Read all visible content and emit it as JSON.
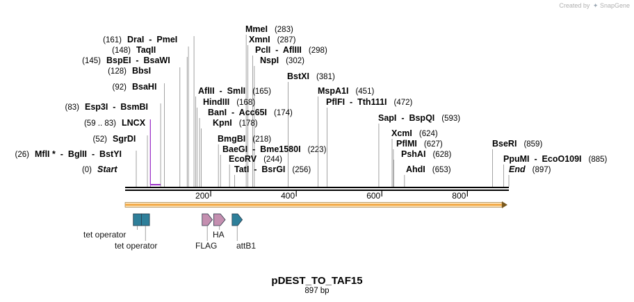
{
  "credit": {
    "text": "Created by",
    "brand": "SnapGene",
    "brand_icon": "snapgene-logo-icon"
  },
  "map": {
    "plasmid_name": "pDEST_TO_TAF15",
    "length_text": "897 bp",
    "length_bp": 897
  },
  "axis_ticks": [
    {
      "bp": 200,
      "label": "200"
    },
    {
      "bp": 400,
      "label": "400"
    },
    {
      "bp": 600,
      "label": "600"
    },
    {
      "bp": 800,
      "label": "800"
    }
  ],
  "sites": [
    {
      "text": "MmeI",
      "pos_text": "(283)",
      "bp": 283
    },
    {
      "text": "XmnI",
      "pos_text": "(287)",
      "bp": 287
    },
    {
      "text": "PclI  -  AflIII",
      "pos_text": "(298)",
      "bp": 298
    },
    {
      "text": "NspI",
      "pos_text": "(302)",
      "bp": 302
    },
    {
      "text": "BstXI",
      "pos_text": "(381)",
      "bp": 381
    },
    {
      "text": "DraI  -  PmeI",
      "pos_text": "(161)",
      "bp": 161
    },
    {
      "text": "TaqII",
      "pos_text": "(148)",
      "bp": 148
    },
    {
      "text": "BspEI  -  BsaWI",
      "pos_text": "(145)",
      "bp": 145
    },
    {
      "text": "BbsI",
      "pos_text": "(128)",
      "bp": 128
    },
    {
      "text": "BsaHI",
      "pos_text": "(92)",
      "bp": 92
    },
    {
      "text": "Esp3I  -  BsmBI",
      "pos_text": "(83)",
      "bp": 83
    },
    {
      "text": "LNCX",
      "pos_text": "(59 .. 83)",
      "bp": 59,
      "bp_end": 83,
      "kind": "primer"
    },
    {
      "text": "SgrDI",
      "pos_text": "(52)",
      "bp": 52
    },
    {
      "text": "MflI *  -  BglII  -  BstYI",
      "pos_text": "(26)",
      "bp": 26
    },
    {
      "text": "Start",
      "pos_text": "(0)",
      "bp": 0,
      "kind": "start"
    },
    {
      "text": "AflII  -  SmlI",
      "pos_text": "(165)",
      "bp": 165
    },
    {
      "text": "HindIII",
      "pos_text": "(168)",
      "bp": 168
    },
    {
      "text": "BanI  -  Acc65I",
      "pos_text": "(174)",
      "bp": 174
    },
    {
      "text": "KpnI",
      "pos_text": "(178)",
      "bp": 178
    },
    {
      "text": "BmgBI",
      "pos_text": "(218)",
      "bp": 218
    },
    {
      "text": "BaeGI  -  Bme1580I",
      "pos_text": "(223)",
      "bp": 223
    },
    {
      "text": "EcoRV",
      "pos_text": "(244)",
      "bp": 244
    },
    {
      "text": "TatI  -  BsrGI",
      "pos_text": "(256)",
      "bp": 256
    },
    {
      "text": "MspA1I",
      "pos_text": "(451)",
      "bp": 451
    },
    {
      "text": "PflFI  -  Tth111I",
      "pos_text": "(472)",
      "bp": 472
    },
    {
      "text": "SapI  -  BspQI",
      "pos_text": "(593)",
      "bp": 593
    },
    {
      "text": "XcmI",
      "pos_text": "(624)",
      "bp": 624
    },
    {
      "text": "PflMI",
      "pos_text": "(627)",
      "bp": 627
    },
    {
      "text": "PshAI",
      "pos_text": "(628)",
      "bp": 628
    },
    {
      "text": "AhdI",
      "pos_text": "(653)",
      "bp": 653
    },
    {
      "text": "BseRI",
      "pos_text": "(859)",
      "bp": 859
    },
    {
      "text": "PpuMI  -  EcoO109I",
      "pos_text": "(885)",
      "bp": 885
    },
    {
      "text": "End",
      "pos_text": "(897)",
      "bp": 897,
      "kind": "end"
    }
  ],
  "features": [
    {
      "name": "tet operator",
      "bp": 19,
      "bp_end": 38,
      "color": "#2e7f9a",
      "shape": "box"
    },
    {
      "name": "tet operator",
      "bp": 38,
      "bp_end": 57,
      "color": "#2e7f9a",
      "shape": "box"
    },
    {
      "name": "FLAG",
      "bp": 180,
      "bp_end": 204,
      "color": "#c48fb0",
      "shape": "arrow"
    },
    {
      "name": "HA",
      "bp": 207,
      "bp_end": 234,
      "color": "#c48fb0",
      "shape": "arrow"
    },
    {
      "name": "attB1",
      "bp": 250,
      "bp_end": 274,
      "color": "#2e7f9a",
      "shape": "arrow"
    }
  ],
  "orf": {
    "color": "#f2a33a",
    "bp": 0,
    "bp_end": 897
  },
  "colors": {
    "primer": "#9b30c8",
    "ruler": "#000000",
    "leader": "#8a8a8a"
  }
}
